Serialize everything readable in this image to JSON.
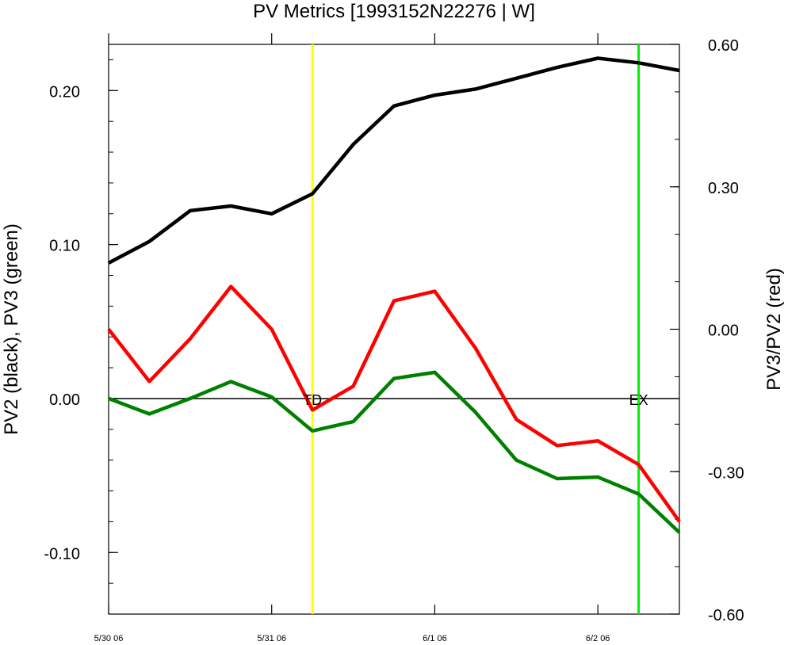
{
  "chart_data": {
    "type": "line",
    "title": "PV Metrics [1993152N22276 | W]",
    "xlabel": "",
    "x": [
      "1993-05-30 00",
      "1993-05-30 06",
      "1993-05-30 12",
      "1993-05-30 18",
      "1993-05-31 00",
      "1993-05-31 06",
      "1993-05-31 12",
      "1993-05-31 18",
      "1993-06-01 00",
      "1993-06-01 06",
      "1993-06-01 12",
      "1993-06-01 18",
      "1993-06-02 00",
      "1993-06-02 06",
      "1993-06-02 12"
    ],
    "x_ticks": [
      {
        "x": "1993-05-30 00",
        "label": "5/30 06"
      },
      {
        "x": "1993-05-31 00",
        "label": "5/31 06"
      },
      {
        "x": "1993-06-01 00",
        "label": "6/1 06"
      },
      {
        "x": "1993-06-02 00",
        "label": "6/2 06"
      }
    ],
    "xlim": [
      "1993-05-30 00",
      "1993-06-02 12"
    ],
    "left_axis": {
      "label": "PV2 (black), PV3 (green)",
      "ylim": [
        -0.14,
        0.23
      ],
      "ticks": [
        -0.1,
        0.0,
        0.1,
        0.2
      ],
      "tick_labels": [
        "-0.10",
        "0.00",
        "0.10",
        "0.20"
      ],
      "minor_step": 0.02
    },
    "right_axis": {
      "label": "PV3/PV2 (red)",
      "ylim": [
        -0.6,
        0.6
      ],
      "ticks": [
        -0.6,
        -0.3,
        0.0,
        0.3,
        0.6
      ],
      "tick_labels": [
        "-0.60",
        "-0.30",
        "0.00",
        "0.30",
        "0.60"
      ],
      "minor_step": 0.1
    },
    "series": [
      {
        "axis": "left",
        "color": "#000000",
        "values": [
          0.088,
          0.102,
          0.122,
          0.125,
          0.12,
          0.133,
          0.165,
          0.19,
          0.197,
          0.201,
          0.208,
          0.215,
          0.221,
          0.218,
          0.213
        ]
      },
      {
        "axis": "left",
        "color": "#008000",
        "values": [
          0.0,
          -0.01,
          0.0,
          0.011,
          0.001,
          -0.021,
          -0.015,
          0.013,
          0.017,
          -0.009,
          -0.04,
          -0.052,
          -0.051,
          -0.062,
          -0.087
        ]
      },
      {
        "axis": "right",
        "color": "#ff0000",
        "values": [
          0.0,
          -0.11,
          -0.02,
          0.09,
          0.0,
          -0.17,
          -0.12,
          0.06,
          0.08,
          -0.04,
          -0.19,
          -0.245,
          -0.235,
          -0.285,
          -0.405
        ]
      }
    ],
    "reference_line": {
      "y": 0,
      "axis": "left",
      "color": "#000000"
    },
    "markers": [
      {
        "x": "1993-05-31 06",
        "label": "TD",
        "color": "#ffff00"
      },
      {
        "x": "1993-06-02 06",
        "label": "EX",
        "color": "#00ee00"
      }
    ],
    "grid": false
  }
}
